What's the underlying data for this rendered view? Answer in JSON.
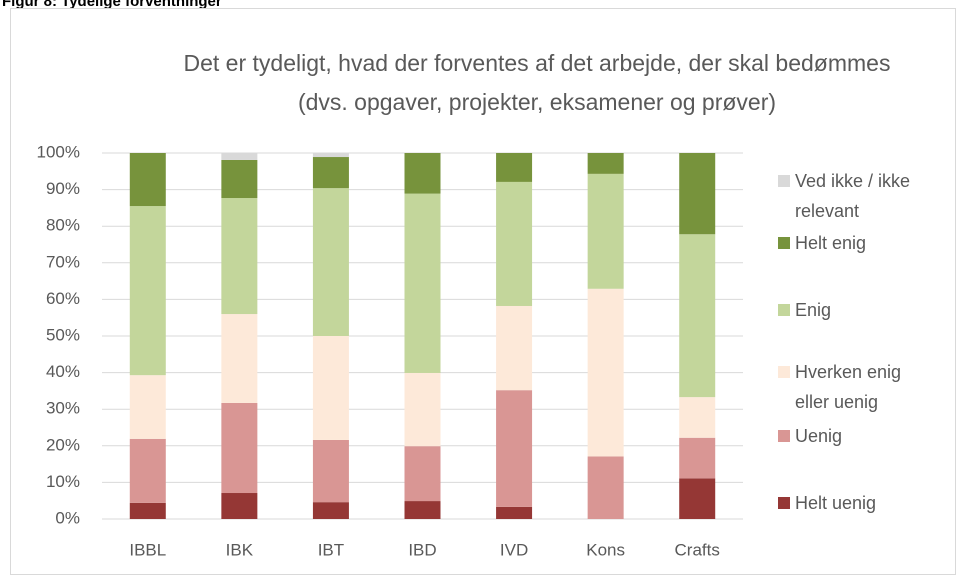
{
  "header": "Figur 8: Tydelige forventninger",
  "chart_data": {
    "type": "stacked_bar",
    "title": "Det er tydeligt, hvad der forventes af det arbejde, der skal bedømmes (dvs. opgaver, projekter, eksamener og prøver)",
    "categories": [
      "IBBL",
      "IBK",
      "IBT",
      "IBD",
      "IVD",
      "Kons",
      "Crafts"
    ],
    "series": [
      {
        "name": "Helt uenig",
        "color": "#953735",
        "values": [
          4.4,
          7.1,
          4.6,
          4.9,
          3.3,
          0,
          11.1
        ]
      },
      {
        "name": "Uenig",
        "color": "#d99694",
        "values": [
          17.5,
          24.6,
          17,
          15,
          31.9,
          17.1,
          11.1
        ]
      },
      {
        "name": "Hverken enig eller uenig",
        "color": "#fde9d9",
        "values": [
          17.4,
          24.3,
          28.4,
          20,
          23,
          45.8,
          11.1
        ]
      },
      {
        "name": "Enig",
        "color": "#c3d69b",
        "values": [
          46.2,
          31.7,
          40.4,
          49,
          33.9,
          31.4,
          44.5
        ]
      },
      {
        "name": "Helt enig",
        "color": "#77933c",
        "values": [
          14.5,
          10.4,
          8.5,
          11.1,
          7.9,
          5.7,
          22.2
        ]
      },
      {
        "name": "Ved ikke / ikke relevant",
        "color": "#d9d9d9",
        "values": [
          0,
          1.9,
          1.1,
          0,
          0,
          0,
          0
        ]
      }
    ],
    "ylim": [
      0,
      100
    ],
    "yticks": [
      {
        "value": 0,
        "label": "0%"
      },
      {
        "value": 10,
        "label": "10%"
      },
      {
        "value": 20,
        "label": "20%"
      },
      {
        "value": 30,
        "label": "30%"
      },
      {
        "value": 40,
        "label": "40%"
      },
      {
        "value": 50,
        "label": "50%"
      },
      {
        "value": 60,
        "label": "60%"
      },
      {
        "value": 70,
        "label": "70%"
      },
      {
        "value": 80,
        "label": "80%"
      },
      {
        "value": 90,
        "label": "90%"
      },
      {
        "value": 100,
        "label": "100%"
      }
    ],
    "grid": true,
    "legend": "right"
  }
}
